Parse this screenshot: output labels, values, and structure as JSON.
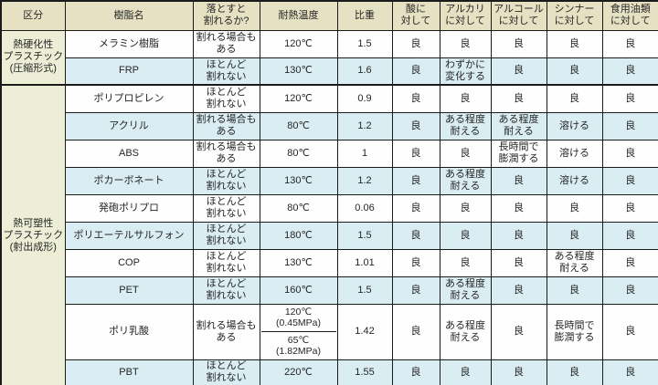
{
  "colors": {
    "header_bg": "#e6e1c3",
    "group_cell_bg": "#edeed6",
    "row_stripe_blue": "#d9edf2",
    "row_stripe_white": "#fefefe",
    "border": "#1b1b1b",
    "text": "#262626"
  },
  "chart_data": {
    "type": "table",
    "title": "",
    "columns": [
      "区分",
      "樹脂名",
      "落とすと\n割れるか?",
      "耐熱温度",
      "比重",
      "酸に\n対して",
      "アルカリ\nに対して",
      "アルコール\nに対して",
      "シンナー\nに対して",
      "食用油類\nに対して"
    ],
    "row_groups": [
      {
        "label": "熱硬化性\nプラスチック\n(圧縮形式)",
        "span": 2
      },
      {
        "label": "熱可塑性\nプラスチック\n(射出成形)",
        "span": 10
      }
    ],
    "rows": [
      {
        "resin": "メラミン樹脂",
        "breaks": "割れる場合も\nある",
        "temp": "120℃",
        "gravity": "1.5",
        "acid": "良",
        "alkali": "良",
        "alcohol": "良",
        "thinner": "良",
        "oil": "良"
      },
      {
        "resin": "FRP",
        "breaks": "ほとんど\n割れない",
        "temp": "130℃",
        "gravity": "1.6",
        "acid": "良",
        "alkali": "わずかに\n変化する",
        "alcohol": "良",
        "thinner": "良",
        "oil": "良"
      },
      {
        "resin": "ポリプロピレン",
        "breaks": "ほとんど\n割れない",
        "temp": "120℃",
        "gravity": "0.9",
        "acid": "良",
        "alkali": "良",
        "alcohol": "良",
        "thinner": "良",
        "oil": "良"
      },
      {
        "resin": "アクリル",
        "breaks": "割れる場合も\nある",
        "temp": "80℃",
        "gravity": "1.2",
        "acid": "良",
        "alkali": "ある程度\n耐える",
        "alcohol": "ある程度\n耐える",
        "thinner": "溶ける",
        "oil": "良"
      },
      {
        "resin": "ABS",
        "breaks": "割れる場合も\nある",
        "temp": "80℃",
        "gravity": "1",
        "acid": "良",
        "alkali": "良",
        "alcohol": "長時間で\n膨潤する",
        "thinner": "溶ける",
        "oil": "良"
      },
      {
        "resin": "ポカーボネート",
        "breaks": "ほとんど\n割れない",
        "temp": "130℃",
        "gravity": "1.2",
        "acid": "良",
        "alkali": "ある程度\n耐える",
        "alcohol": "良",
        "thinner": "溶ける",
        "oil": "良"
      },
      {
        "resin": "発砲ポリプロ",
        "breaks": "ほとんど\n割れない",
        "temp": "80℃",
        "gravity": "0.06",
        "acid": "良",
        "alkali": "良",
        "alcohol": "良",
        "thinner": "良",
        "oil": "良"
      },
      {
        "resin": "ポリエーテルサルフォン",
        "breaks": "ほとんど\n割れない",
        "temp": "180℃",
        "gravity": "1.5",
        "acid": "良",
        "alkali": "良",
        "alcohol": "良",
        "thinner": "良",
        "oil": "良"
      },
      {
        "resin": "COP",
        "breaks": "ほとんど\n割れない",
        "temp": "130℃",
        "gravity": "1.01",
        "acid": "良",
        "alkali": "良",
        "alcohol": "良",
        "thinner": "ある程度\n耐える",
        "oil": "良"
      },
      {
        "resin": "PET",
        "breaks": "ほとんど\n割れない",
        "temp": "160℃",
        "gravity": "1.5",
        "acid": "良",
        "alkali": "ある程度\n耐える",
        "alcohol": "良",
        "thinner": "良",
        "oil": "良"
      },
      {
        "resin": "ポリ乳酸",
        "breaks": "割れる場合も\nある",
        "temp": [
          "120℃\n(0.45MPa)",
          "65℃\n(1.82MPa)"
        ],
        "gravity": "1.42",
        "acid": "良",
        "alkali": "ある程度\n耐える",
        "alcohol": "良",
        "thinner": "長時間で\n膨潤する",
        "oil": "良"
      },
      {
        "resin": "PBT",
        "breaks": "ほとんど\n割れない",
        "temp": "220℃",
        "gravity": "1.55",
        "acid": "良",
        "alkali": "良",
        "alcohol": "良",
        "thinner": "良",
        "oil": "良"
      }
    ]
  }
}
